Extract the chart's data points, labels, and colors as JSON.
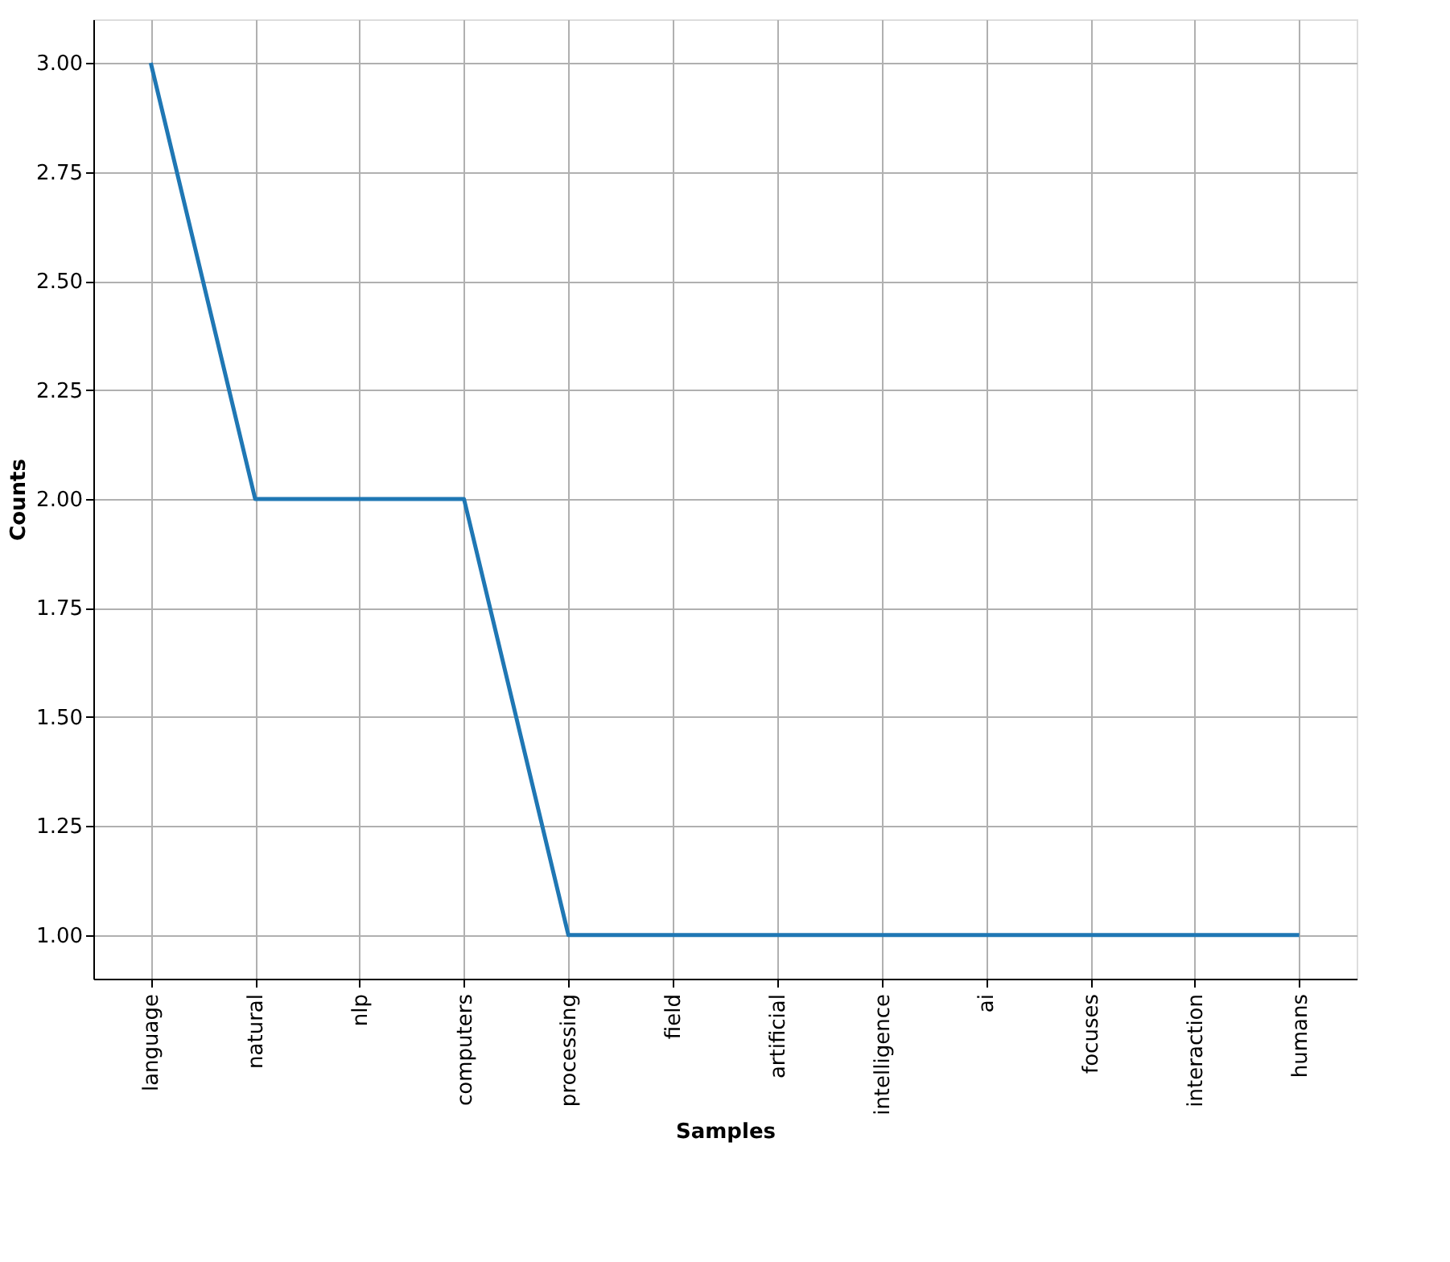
{
  "chart_data": {
    "type": "line",
    "xlabel": "Samples",
    "ylabel": "Counts",
    "categories": [
      "language",
      "natural",
      "nlp",
      "computers",
      "processing",
      "field",
      "artificial",
      "intelligence",
      "ai",
      "focuses",
      "interaction",
      "humans"
    ],
    "series": [
      {
        "color": "#1f77b4",
        "values": [
          3,
          2,
          2,
          2,
          1,
          1,
          1,
          1,
          1,
          1,
          1,
          1
        ]
      }
    ],
    "ylim": [
      0.9,
      3.1
    ],
    "yticks": [
      {
        "value": 1,
        "label": "1.00"
      },
      {
        "value": 1.25,
        "label": "1.25"
      },
      {
        "value": 1.5,
        "label": "1.50"
      },
      {
        "value": 1.75,
        "label": "1.75"
      },
      {
        "value": 2,
        "label": "2.00"
      },
      {
        "value": 2.25,
        "label": "2.25"
      },
      {
        "value": 2.5,
        "label": "2.50"
      },
      {
        "value": 2.75,
        "label": "2.75"
      },
      {
        "value": 3,
        "label": "3.00"
      }
    ],
    "grid": true,
    "marker": "none",
    "line_style": "solid"
  }
}
